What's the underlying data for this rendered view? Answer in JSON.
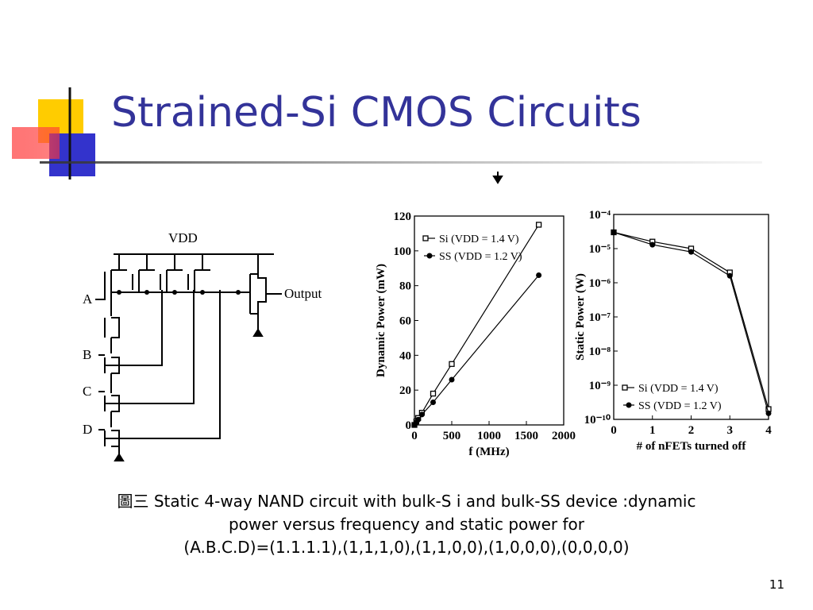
{
  "slide_title": "Strained-Si CMOS Circuits",
  "circuit": {
    "vdd": "VDD",
    "inputs": [
      "A",
      "B",
      "C",
      "D"
    ],
    "output": "Output"
  },
  "caption_lines": [
    "圖三 Static 4-way NAND circuit with bulk-S i and bulk-SS device :dynamic",
    "power versus frequency and static power for",
    "(A.B.C.D)=(1.1.1.1),(1,1,1,0),(1,1,0,0),(1,0,0,0),(0,0,0,0)"
  ],
  "page_number": "11",
  "chart_data": [
    {
      "type": "line",
      "x_label": "f (MHz)",
      "y_label": "Dynamic Power (mW)",
      "x": [
        0,
        25,
        50,
        100,
        250,
        500,
        1666
      ],
      "series": [
        {
          "name": "Si (VDD = 1.4 V)",
          "color": "#000000",
          "marker": "square",
          "values": [
            0,
            2,
            4,
            7,
            18,
            35,
            115
          ]
        },
        {
          "name": "SS (VDD = 1.2 V)",
          "color": "#000000",
          "marker": "circle",
          "values": [
            0,
            1.5,
            3,
            6,
            13,
            26,
            86
          ]
        }
      ],
      "xlim": [
        0,
        2000
      ],
      "xticks": [
        0,
        500,
        1000,
        1500,
        2000
      ],
      "ylim": [
        0,
        120
      ],
      "yticks": [
        0,
        20,
        40,
        60,
        80,
        100,
        120
      ],
      "legend": "upper left"
    },
    {
      "type": "line",
      "x_label": "# of nFETs turned off",
      "y_label": "Static Power (W)",
      "log_y": true,
      "x": [
        0,
        1,
        2,
        3,
        4
      ],
      "series": [
        {
          "name": "Si (VDD = 1.4 V)",
          "color": "#000000",
          "marker": "square",
          "values": [
            3e-05,
            1.6e-05,
            1e-05,
            2e-06,
            2e-10
          ]
        },
        {
          "name": "SS (VDD = 1.2 V)",
          "color": "#000000",
          "marker": "circle",
          "values": [
            3e-05,
            1.3e-05,
            8e-06,
            1.6e-06,
            1.5e-10
          ]
        }
      ],
      "xlim": [
        0,
        4
      ],
      "xticks": [
        0,
        1,
        2,
        3,
        4
      ],
      "ylim": [
        1e-10,
        0.0001
      ],
      "yticks": [
        {
          "value": 1e-10,
          "label": "10⁻¹⁰"
        },
        {
          "value": 1e-09,
          "label": "10⁻⁹"
        },
        {
          "value": 1e-08,
          "label": "10⁻⁸"
        },
        {
          "value": 1e-07,
          "label": "10⁻⁷"
        },
        {
          "value": 1e-06,
          "label": "10⁻⁶"
        },
        {
          "value": 1e-05,
          "label": "10⁻⁵"
        },
        {
          "value": 0.0001,
          "label": "10⁻⁴"
        }
      ],
      "legend": "lower left"
    }
  ]
}
